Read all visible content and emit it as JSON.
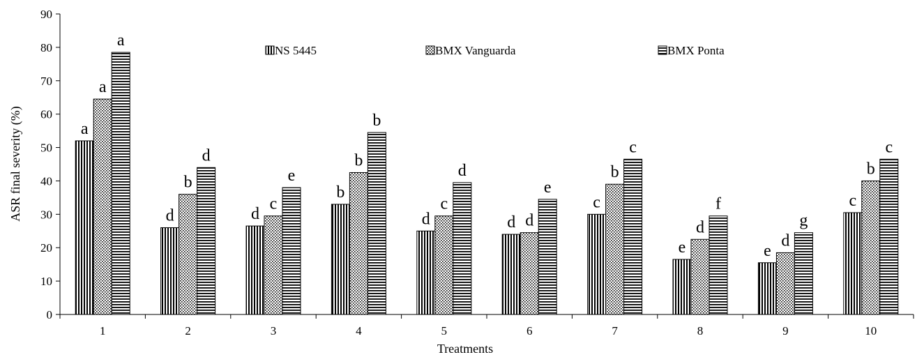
{
  "chart_data": {
    "type": "bar",
    "title": "",
    "xlabel": "Treatments",
    "ylabel": "ASR final  severity  (%)",
    "ylim": [
      0,
      90
    ],
    "yticks": [
      0,
      10,
      20,
      30,
      40,
      50,
      60,
      70,
      80,
      90
    ],
    "categories": [
      "1",
      "2",
      "3",
      "4",
      "5",
      "6",
      "7",
      "8",
      "9",
      "10"
    ],
    "legend_position": "top",
    "grid": false,
    "series": [
      {
        "name": "NS 5445",
        "pattern": "vertical-lines",
        "values": [
          52,
          26,
          26.5,
          33,
          25,
          24,
          30,
          16.5,
          15.5,
          30.5
        ],
        "labels": [
          "a",
          "d",
          "d",
          "b",
          "d",
          "d",
          "c",
          "e",
          "e",
          "c"
        ]
      },
      {
        "name": "BMX Vanguarda",
        "pattern": "dots",
        "values": [
          64.5,
          36,
          29.5,
          42.5,
          29.5,
          24.5,
          39,
          22.5,
          18.5,
          40
        ],
        "labels": [
          "a",
          "b",
          "c",
          "b",
          "c",
          "d",
          "b",
          "d",
          "d",
          "b"
        ]
      },
      {
        "name": "BMX Ponta",
        "pattern": "horizontal-lines",
        "values": [
          78.5,
          44,
          38,
          54.5,
          39.5,
          34.5,
          46.5,
          29.5,
          24.5,
          46.5
        ],
        "labels": [
          "a",
          "d",
          "e",
          "b",
          "d",
          "e",
          "c",
          "f",
          "g",
          "c"
        ]
      }
    ]
  }
}
